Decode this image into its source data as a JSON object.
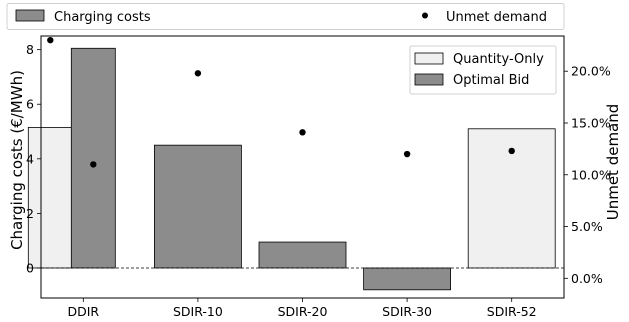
{
  "chart_data": {
    "type": "bar",
    "categories": [
      "DDIR",
      "SDIR-10",
      "SDIR-20",
      "SDIR-30",
      "SDIR-52"
    ],
    "series": [
      {
        "name": "Quantity-Only",
        "values": [
          5.15,
          null,
          null,
          null,
          5.1
        ],
        "color": "#f0f0f0"
      },
      {
        "name": "Optimal Bid",
        "values": [
          8.05,
          4.5,
          0.95,
          -0.8,
          null
        ],
        "color": "#8c8c8c"
      }
    ],
    "unmet_demand": {
      "name": "Unmet demand",
      "points": [
        {
          "category": "DDIR",
          "series": "Quantity-Only",
          "value": 23.0
        },
        {
          "category": "DDIR",
          "series": "Optimal Bid",
          "value": 11.0
        },
        {
          "category": "SDIR-10",
          "series": "Optimal Bid",
          "value": 19.8
        },
        {
          "category": "SDIR-20",
          "series": "Optimal Bid",
          "value": 14.1
        },
        {
          "category": "SDIR-30",
          "series": "Optimal Bid",
          "value": 12.0
        },
        {
          "category": "SDIR-52",
          "series": "Quantity-Only",
          "value": 12.3
        }
      ],
      "color": "#000000"
    },
    "ylabel": "Charging costs (€/MWh)",
    "y2label": "Unmet demand",
    "ylim": [
      -1.1,
      8.5
    ],
    "y2lim": [
      -1.9,
      23.4
    ],
    "yticks": [
      "0",
      "2",
      "4",
      "6",
      "8"
    ],
    "y2ticks": [
      "0.0%",
      "5.0%",
      "10.0%",
      "15.0%",
      "20.0%"
    ],
    "inner_legend": {
      "position": "top-right",
      "items": [
        "Quantity-Only",
        "Optimal Bid"
      ]
    },
    "outer_legend": {
      "position": "above",
      "items": [
        "Charging costs",
        "Unmet demand"
      ]
    },
    "zero_line": "dashed"
  }
}
